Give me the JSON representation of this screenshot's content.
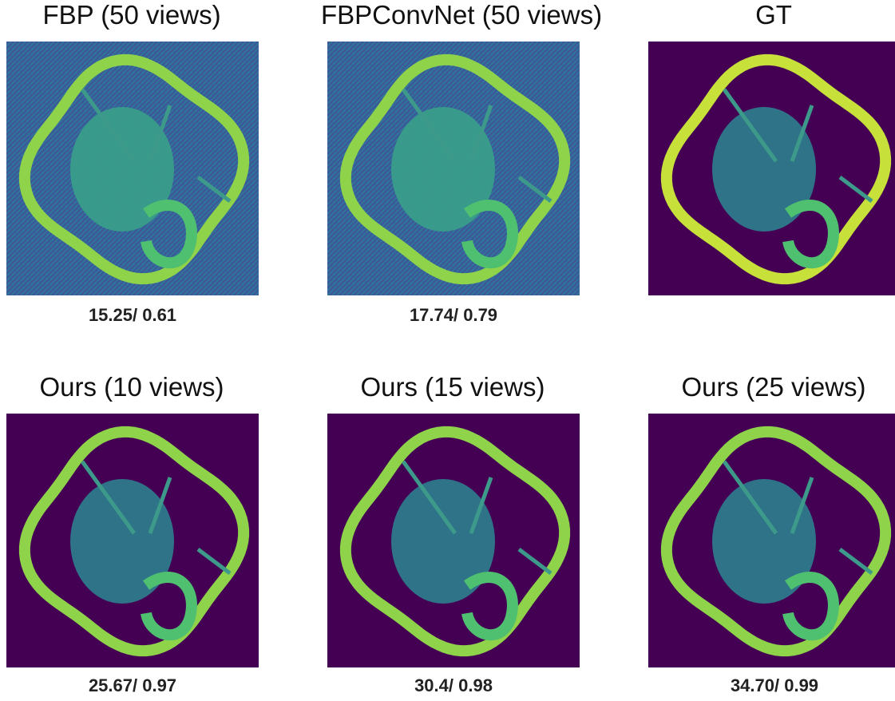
{
  "panels": [
    {
      "title": "FBP (50 views)",
      "metrics": "15.25/ 0.61"
    },
    {
      "title": "FBPConvNet (50 views)",
      "metrics": "17.74/ 0.79"
    },
    {
      "title": "GT"
    },
    {
      "title": "Ours (10 views)",
      "metrics": "25.67/ 0.97"
    },
    {
      "title": "Ours (15 views)",
      "metrics": "30.4/ 0.98"
    },
    {
      "title": "Ours (25 views)",
      "metrics": "34.70/ 0.99"
    }
  ]
}
